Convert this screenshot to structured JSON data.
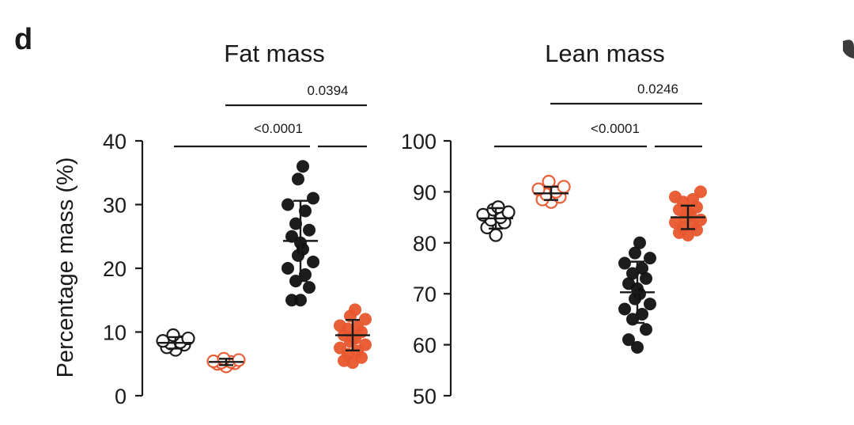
{
  "panel_letter": "d",
  "chart_data": [
    {
      "type": "scatter",
      "title": "Fat mass",
      "ylabel": "Percentage mass (%)",
      "ylim": [
        0,
        40
      ],
      "yticks": [
        0,
        10,
        20,
        30,
        40
      ],
      "groups": [
        {
          "color": "#111111",
          "filled": false,
          "mean": 8.3,
          "sd": 0.9,
          "values": [
            7.2,
            7.6,
            8.0,
            8.2,
            8.4,
            8.6,
            9.0,
            9.5
          ]
        },
        {
          "color": "#e8572e",
          "filled": false,
          "mean": 5.3,
          "sd": 0.5,
          "values": [
            4.6,
            5.0,
            5.2,
            5.3,
            5.4,
            5.6,
            5.8,
            5.1
          ]
        },
        {
          "color": "#111111",
          "filled": true,
          "mean": 24.3,
          "sd": 6.3,
          "values": [
            36,
            34,
            31,
            30,
            29,
            27,
            26,
            25,
            24,
            23,
            22,
            21,
            20,
            19,
            18,
            17,
            15,
            15
          ]
        },
        {
          "color": "#e8572e",
          "filled": true,
          "mean": 9.5,
          "sd": 2.4,
          "values": [
            13.5,
            12.5,
            12,
            11,
            10.5,
            10,
            9.5,
            9.2,
            9,
            8.5,
            8,
            7.5,
            7,
            6.5,
            6,
            5.5,
            5.2,
            10.8
          ]
        }
      ],
      "comparisons": [
        {
          "label": "0.0394",
          "from": 1,
          "to": 3,
          "level": 2
        },
        {
          "label": "<0.0001",
          "from": 0,
          "to": 2,
          "level": 1
        },
        {
          "label": "",
          "from": 2,
          "to": 3,
          "level": 1
        }
      ]
    },
    {
      "type": "scatter",
      "title": "Lean mass",
      "ylabel": "",
      "ylim": [
        50,
        100
      ],
      "yticks": [
        50,
        60,
        70,
        80,
        90,
        100
      ],
      "groups": [
        {
          "color": "#111111",
          "filled": false,
          "mean": 84.8,
          "sd": 2.0,
          "values": [
            81.5,
            83,
            84,
            85,
            85.5,
            86,
            86.5,
            87,
            84.5
          ]
        },
        {
          "color": "#e8572e",
          "filled": false,
          "mean": 89.7,
          "sd": 1.3,
          "values": [
            88,
            89,
            89.5,
            90,
            90.5,
            91,
            92,
            88.5
          ]
        },
        {
          "color": "#111111",
          "filled": true,
          "mean": 70.3,
          "sd": 6.0,
          "values": [
            80,
            78,
            76,
            75,
            74,
            73,
            72,
            71,
            70,
            69,
            68,
            67,
            66,
            65,
            63,
            61,
            59.5,
            77
          ]
        },
        {
          "color": "#e8572e",
          "filled": true,
          "mean": 85.0,
          "sd": 2.3,
          "values": [
            90,
            89,
            88,
            87,
            86.5,
            86,
            85.5,
            85,
            84.5,
            84,
            83.5,
            83,
            82.5,
            82,
            81.5,
            88.5
          ]
        }
      ],
      "comparisons": [
        {
          "label": "0.0246",
          "from": 1,
          "to": 3,
          "level": 2
        },
        {
          "label": "<0.0001",
          "from": 0,
          "to": 2,
          "level": 1
        },
        {
          "label": "",
          "from": 2,
          "to": 3,
          "level": 1
        }
      ]
    }
  ]
}
